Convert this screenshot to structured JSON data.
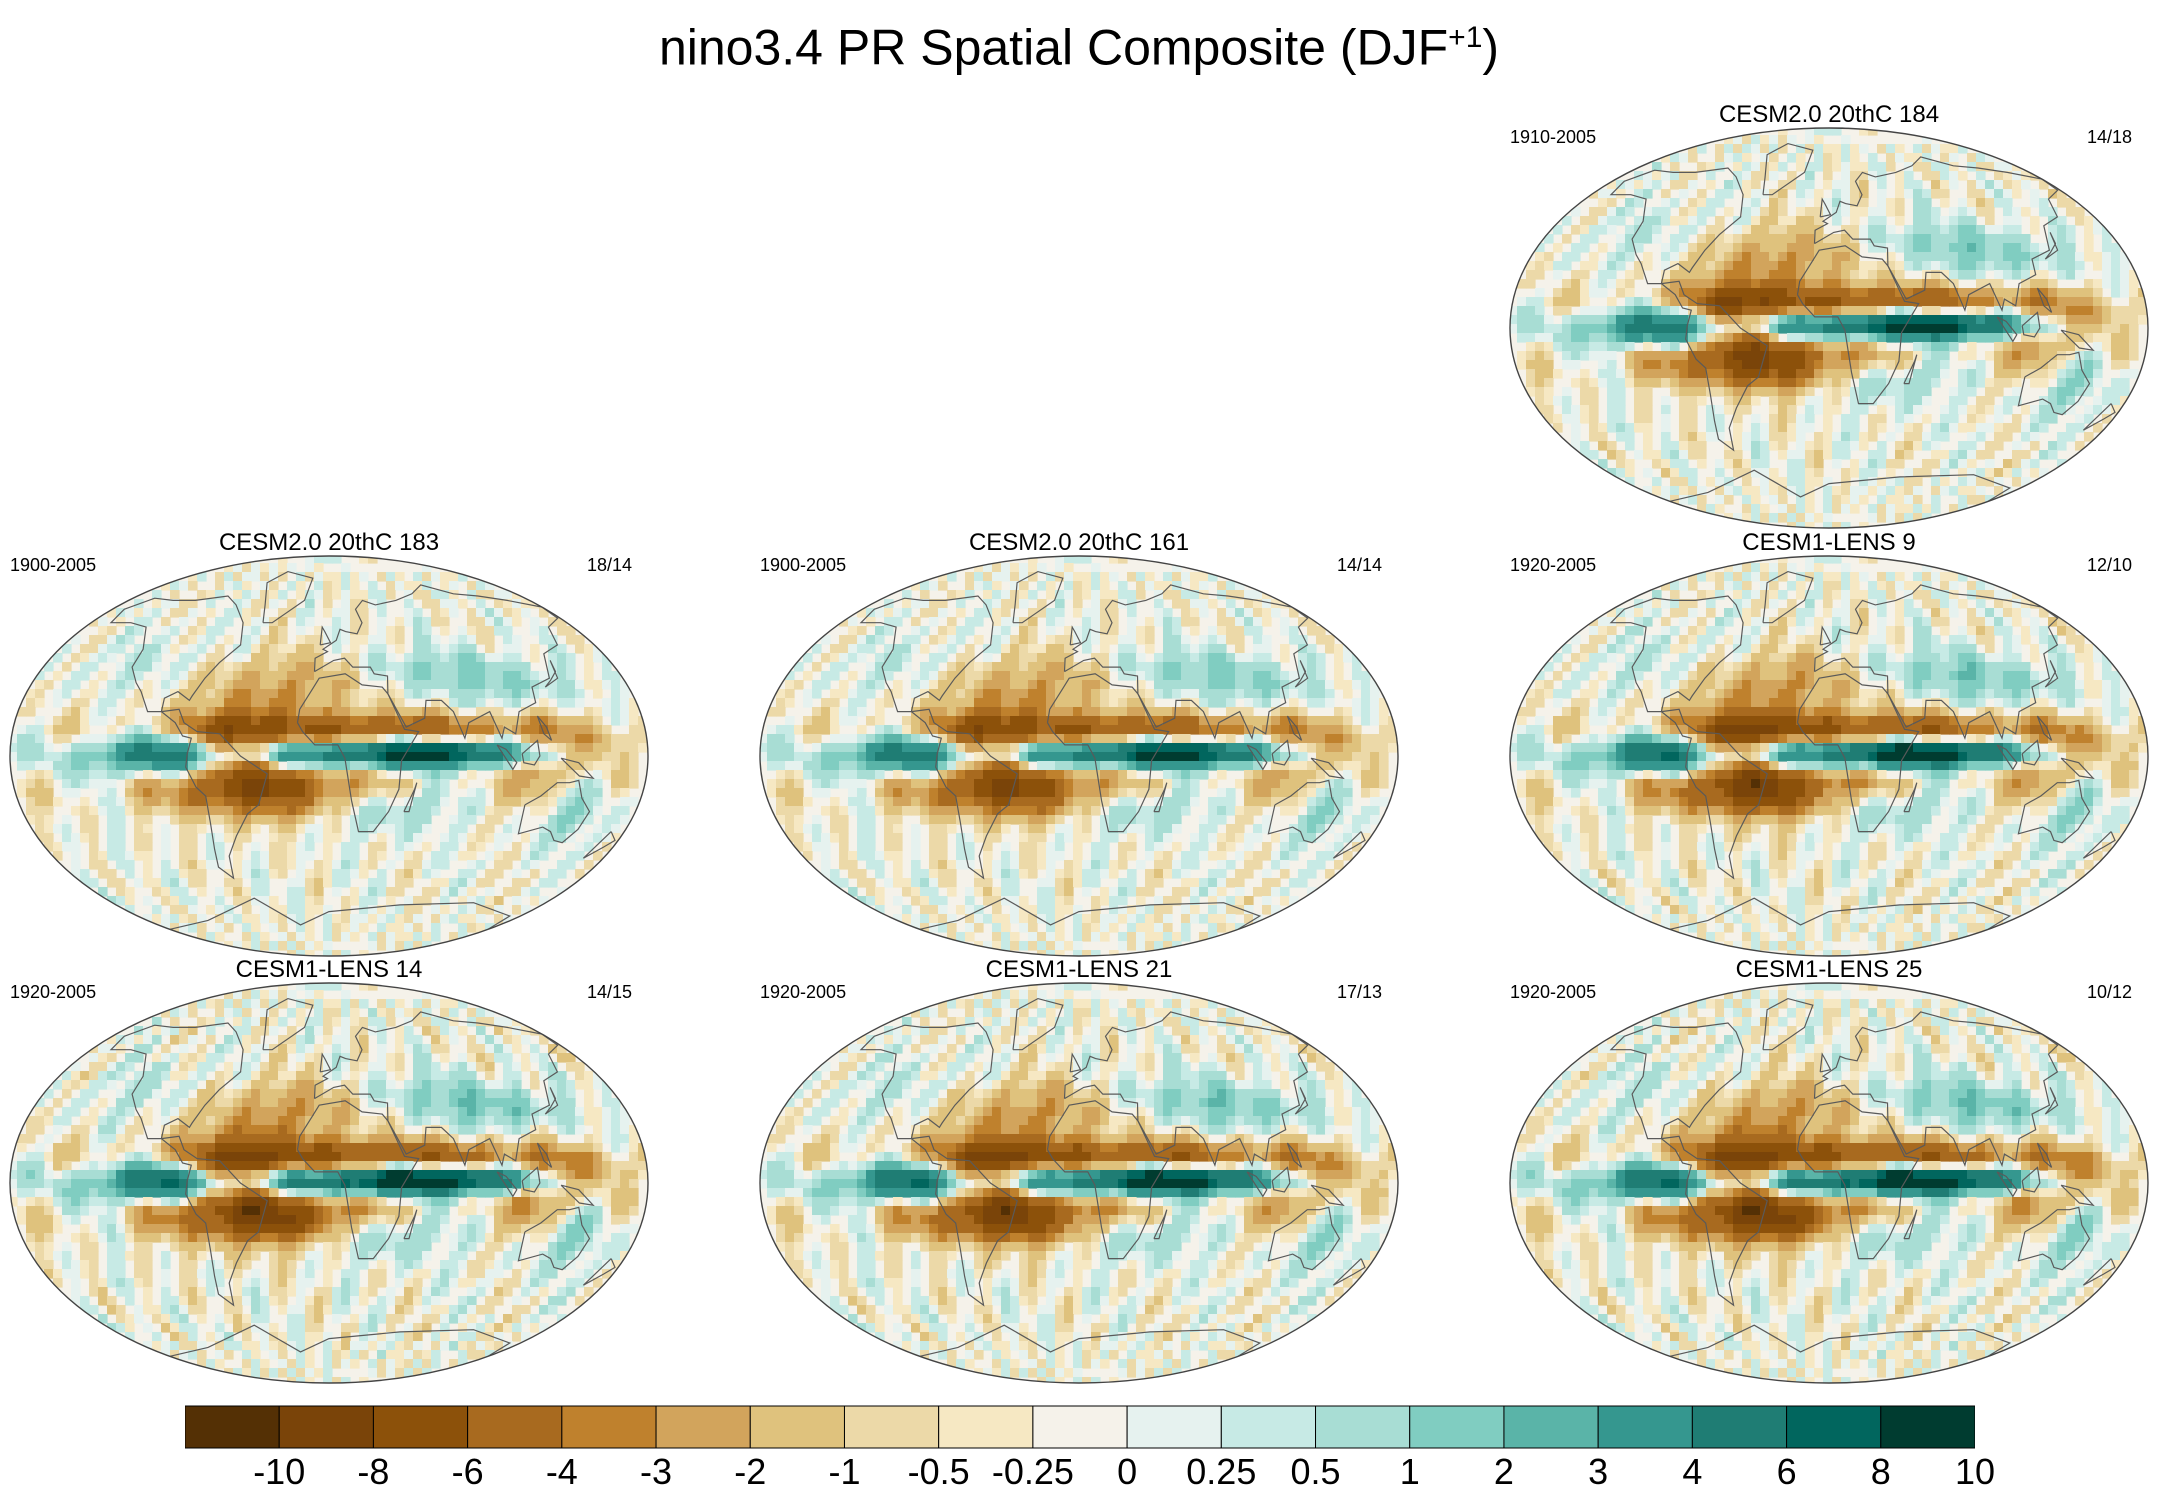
{
  "title": {
    "text": "nino3.4 PR Spatial Composite (DJF",
    "superscript": "+1",
    "suffix": ")"
  },
  "panels": [
    {
      "name": "CESM2.0 20thC 184",
      "years": "1910-2005",
      "count": "14/18",
      "strength": 1.0,
      "row": 0,
      "col": 2
    },
    {
      "name": "CESM2.0 20thC 183",
      "years": "1900-2005",
      "count": "18/14",
      "strength": 0.95,
      "row": 1,
      "col": 0
    },
    {
      "name": "CESM2.0 20thC 161",
      "years": "1900-2005",
      "count": "14/14",
      "strength": 0.95,
      "row": 1,
      "col": 1
    },
    {
      "name": "CESM1-LENS 9",
      "years": "1920-2005",
      "count": "12/10",
      "strength": 1.05,
      "row": 1,
      "col": 2
    },
    {
      "name": "CESM1-LENS 14",
      "years": "1920-2005",
      "count": "14/15",
      "strength": 1.1,
      "row": 2,
      "col": 0
    },
    {
      "name": "CESM1-LENS 21",
      "years": "1920-2005",
      "count": "17/13",
      "strength": 1.05,
      "row": 2,
      "col": 1
    },
    {
      "name": "CESM1-LENS 25",
      "years": "1920-2005",
      "count": "10/12",
      "strength": 1.1,
      "row": 2,
      "col": 2
    }
  ],
  "colorbar": {
    "labels": [
      "-10",
      "-8",
      "-6",
      "-4",
      "-3",
      "-2",
      "-1",
      "-0.5",
      "-0.25",
      "0",
      "0.25",
      "0.5",
      "1",
      "2",
      "3",
      "4",
      "6",
      "8",
      "10"
    ],
    "colors": [
      "#543005",
      "#7a4409",
      "#8c510a",
      "#a86a1f",
      "#bf812d",
      "#d2a45c",
      "#dfc27d",
      "#ecd9a8",
      "#f6e8c3",
      "#f5f2ea",
      "#e6f2ef",
      "#c7eae5",
      "#a8ddd4",
      "#80cdc1",
      "#5ab4a8",
      "#35978f",
      "#1f7d74",
      "#01665e",
      "#003c30"
    ]
  },
  "colors": {
    "coastline": "#5a5a5a",
    "map_outline": "#444444",
    "neutral": "#f5f2ea"
  }
}
